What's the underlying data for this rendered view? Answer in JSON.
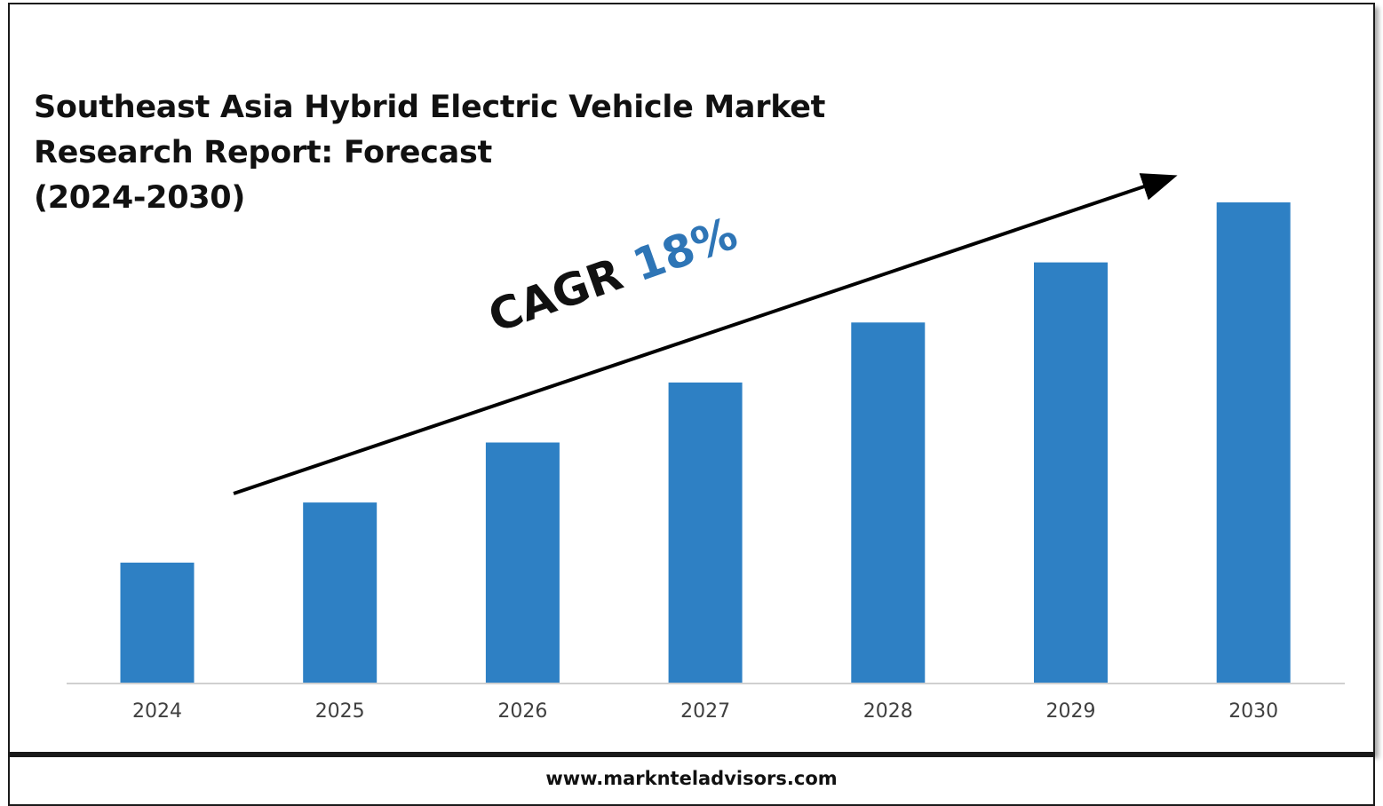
{
  "title": {
    "line1": "Southeast Asia Hybrid Electric Vehicle Market",
    "line2": "Research Report: Forecast",
    "line3": "(2024-2030)"
  },
  "annotation": {
    "label": "CAGR",
    "value": "18%"
  },
  "footer": {
    "url": "www.marknteladvisors.com"
  },
  "colors": {
    "bar": "#2e80c4",
    "accent_text": "#2e75b6",
    "axis": "#d0d0d0",
    "tick_label": "#404040"
  },
  "chart_data": {
    "type": "bar",
    "title": "Southeast Asia Hybrid Electric Vehicle Market Research Report: Forecast (2024-2030)",
    "categories": [
      "2024",
      "2025",
      "2026",
      "2027",
      "2028",
      "2029",
      "2030"
    ],
    "values": [
      1.0,
      1.5,
      2.0,
      2.5,
      3.0,
      3.5,
      4.0
    ],
    "value_note": "relative bar heights only; no value axis is printed",
    "xlabel": "",
    "ylabel": "",
    "ylim": [
      0,
      4.0
    ],
    "grid": false,
    "legend": "none",
    "trend_arrow": true
  }
}
